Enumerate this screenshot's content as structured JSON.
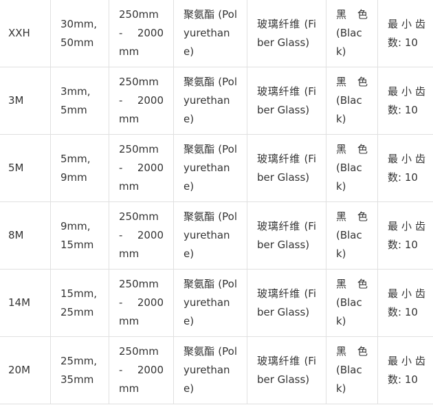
{
  "rows": [
    {
      "type": "XXH",
      "pitch": "30mm, 50mm",
      "length": "250mm - 2000 mm",
      "material": "聚氨酯 (Polyurethane)",
      "cord": "玻璃纤维 (Fiber Glass)",
      "color": "黑 色 (Black)",
      "teeth": "最小齿数: 10"
    },
    {
      "type": "3M",
      "pitch": "3mm, 5mm",
      "length": "250mm - 2000 mm",
      "material": "聚氨酯 (Polyurethane)",
      "cord": "玻璃纤维 (Fiber Glass)",
      "color": "黑 色 (Black)",
      "teeth": "最小齿数: 10"
    },
    {
      "type": "5M",
      "pitch": "5mm, 9mm",
      "length": "250mm - 2000 mm",
      "material": "聚氨酯 (Polyurethane)",
      "cord": "玻璃纤维 (Fiber Glass)",
      "color": "黑 色 (Black)",
      "teeth": "最小齿数: 10"
    },
    {
      "type": "8M",
      "pitch": "9mm, 15mm",
      "length": "250mm - 2000 mm",
      "material": "聚氨酯 (Polyurethane)",
      "cord": "玻璃纤维 (Fiber Glass)",
      "color": "黑 色 (Black)",
      "teeth": "最小齿数: 10"
    },
    {
      "type": "14M",
      "pitch": "15mm, 25mm",
      "length": "250mm - 2000 mm",
      "material": "聚氨酯 (Polyurethane)",
      "cord": "玻璃纤维 (Fiber Glass)",
      "color": "黑 色 (Black)",
      "teeth": "最小齿数: 10"
    },
    {
      "type": "20M",
      "pitch": "25mm, 35mm",
      "length": "250mm - 2000 mm",
      "material": "聚氨酯 (Polyurethane)",
      "cord": "玻璃纤维 (Fiber Glass)",
      "color": "黑 色 (Black)",
      "teeth": "最小齿数: 10"
    }
  ]
}
